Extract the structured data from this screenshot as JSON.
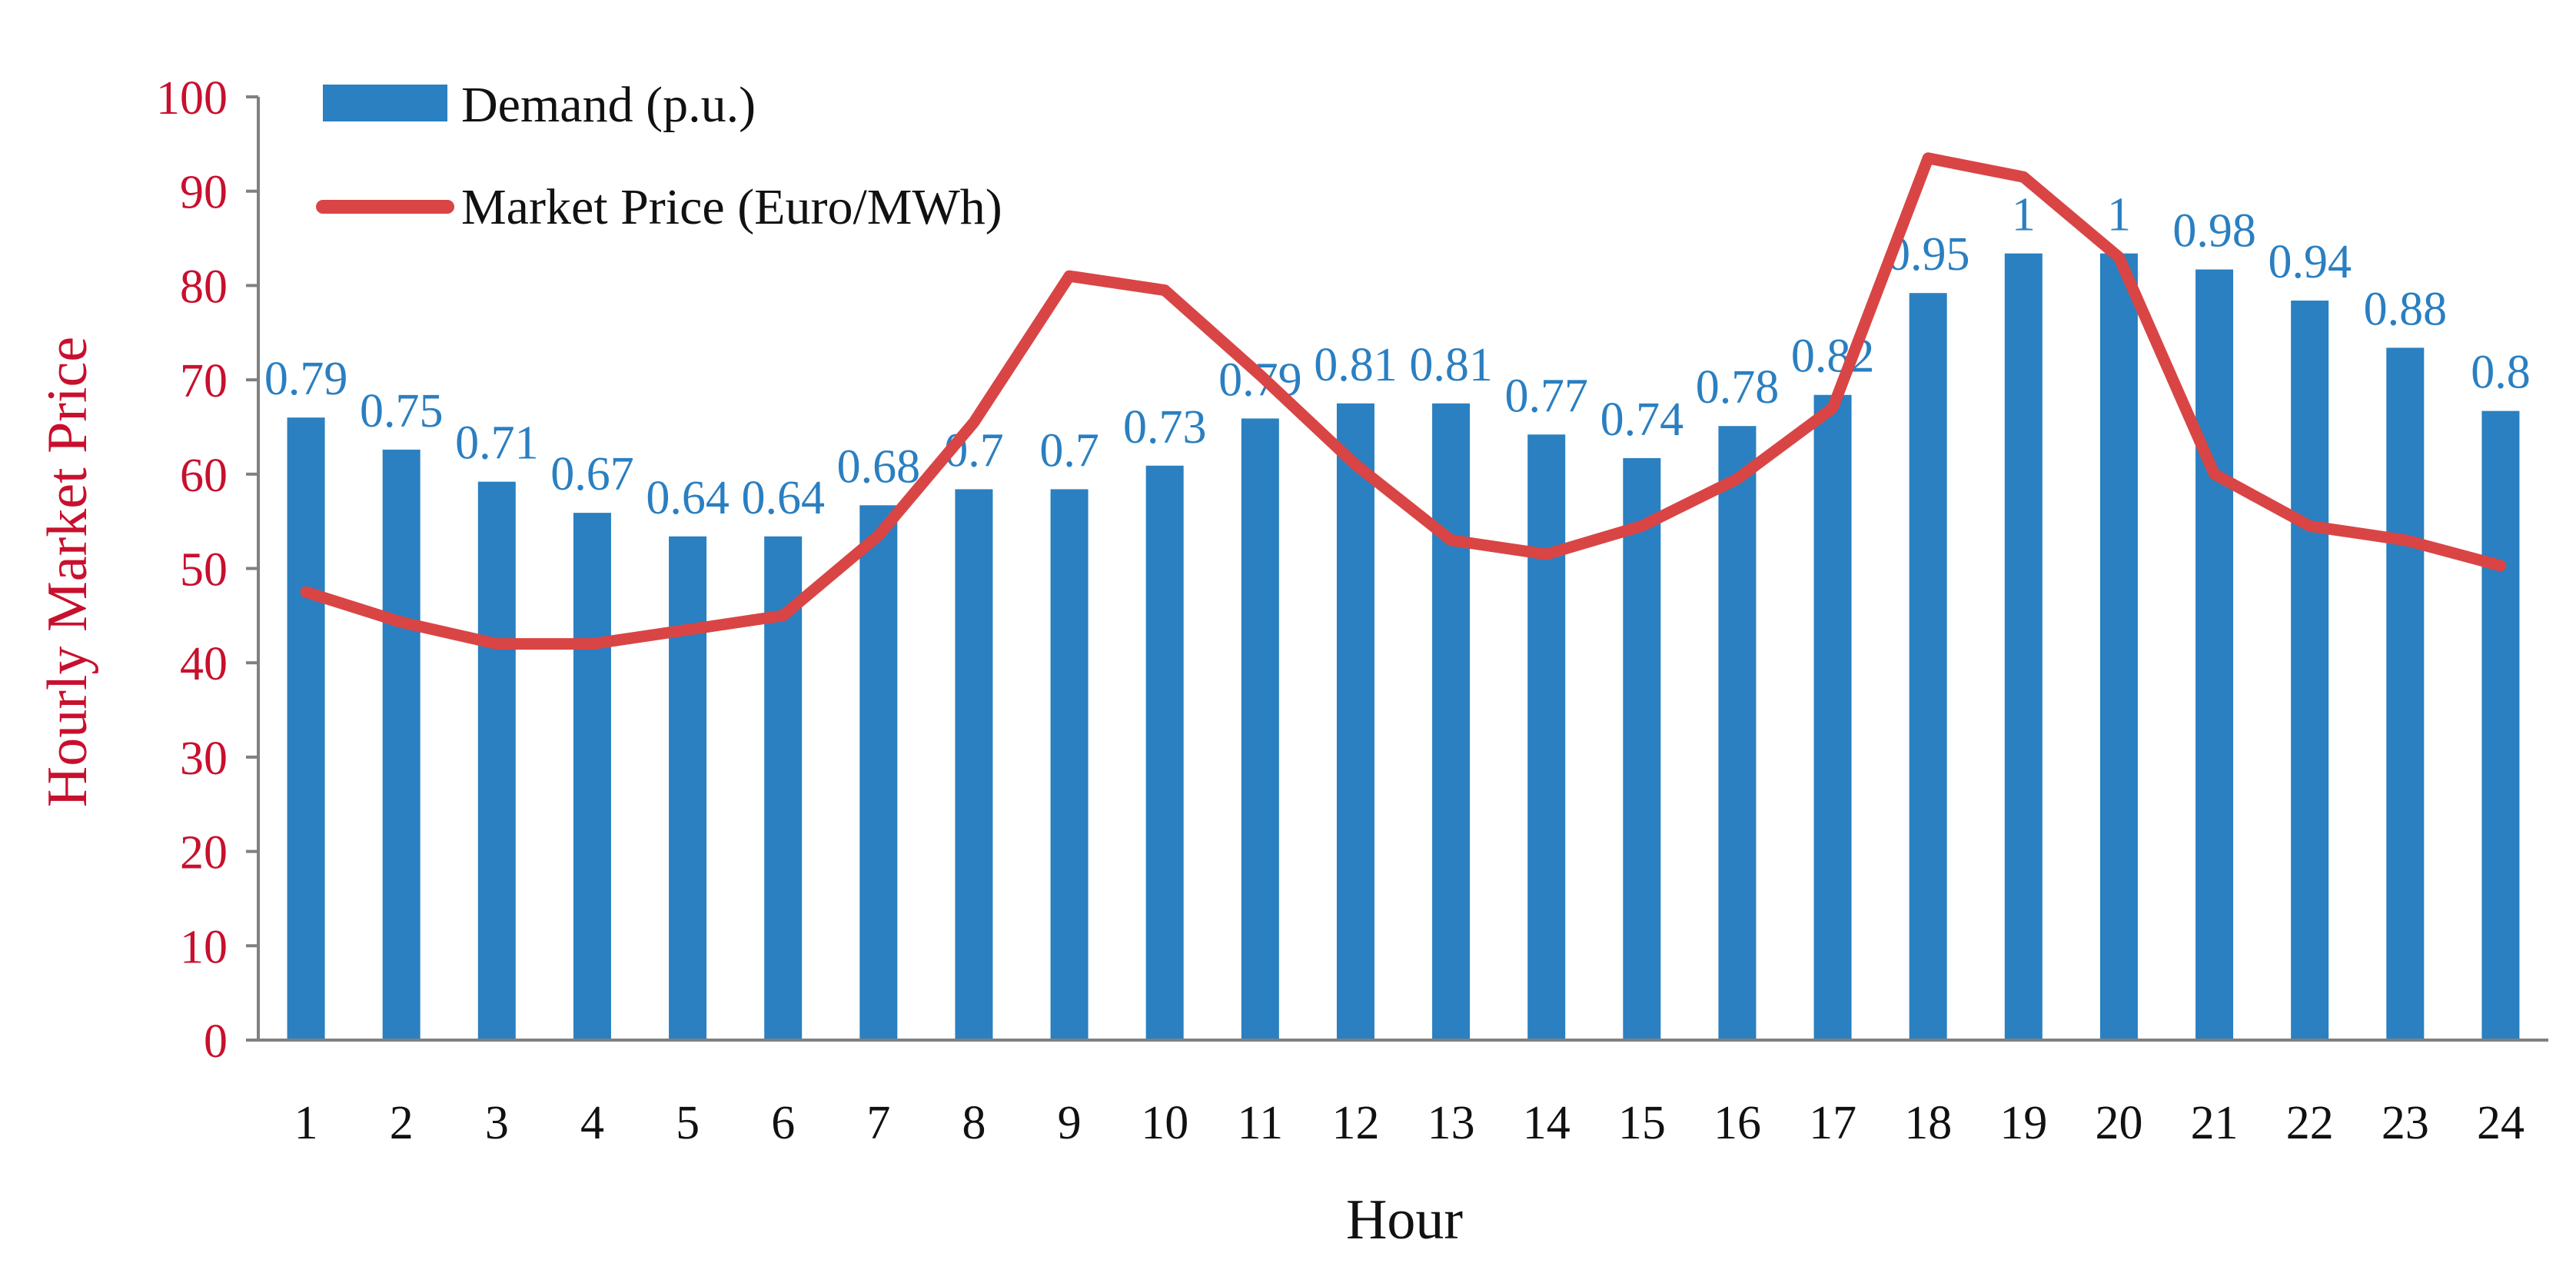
{
  "chart_data": {
    "type": "bar+line",
    "categories": [
      "1",
      "2",
      "3",
      "4",
      "5",
      "6",
      "7",
      "8",
      "9",
      "10",
      "11",
      "12",
      "13",
      "14",
      "15",
      "16",
      "17",
      "18",
      "19",
      "20",
      "21",
      "22",
      "23",
      "24"
    ],
    "series": [
      {
        "name": "Demand (p.u.)",
        "kind": "bar",
        "color": "#2a80c0",
        "values": [
          0.79,
          0.75,
          0.71,
          0.67,
          0.64,
          0.64,
          0.68,
          0.7,
          0.7,
          0.73,
          0.79,
          0.81,
          0.81,
          0.77,
          0.74,
          0.78,
          0.82,
          0.95,
          1,
          1,
          0.98,
          0.94,
          0.88,
          0.8
        ],
        "data_labels": [
          "0.79",
          "0.75",
          "0.71",
          "0.67",
          "0.64",
          "0.64",
          "0.68",
          "0.7",
          "0.7",
          "0.73",
          "0.79",
          "0.81",
          "0.81",
          "0.77",
          "0.74",
          "0.78",
          "0.82",
          "0.95",
          "1",
          "1",
          "0.98",
          "0.94",
          "0.88",
          "0.8"
        ],
        "bar_top_on_price_axis": [
          66,
          62.6,
          59.2,
          55.9,
          53.4,
          53.4,
          56.7,
          58.4,
          58.4,
          60.9,
          65.9,
          67.5,
          67.5,
          64.2,
          61.7,
          65.1,
          68.4,
          79.2,
          83.4,
          83.4,
          81.7,
          78.4,
          73.4,
          66.7
        ]
      },
      {
        "name": "Market Price (Euro/MWh)",
        "kind": "line",
        "color": "#d94545",
        "values": [
          47.5,
          44.3,
          42,
          42,
          43.5,
          45,
          53.5,
          65.5,
          81,
          79.5,
          70.5,
          61,
          53,
          51.5,
          54.5,
          59.5,
          67,
          93.5,
          91.5,
          83,
          60,
          54.5,
          53,
          50.3
        ]
      }
    ],
    "title": "",
    "xlabel": "Hour",
    "ylabel": "Hourly Market Price",
    "ylim": [
      0,
      100
    ],
    "yticks": [
      "0",
      "10",
      "20",
      "30",
      "40",
      "50",
      "60",
      "70",
      "80",
      "90",
      "100"
    ],
    "legend": {
      "position": "top-left",
      "entries": [
        "Demand (p.u.)",
        "Market Price (Euro/MWh)"
      ]
    },
    "colors": {
      "axis_text": "#c8102e",
      "bar": "#2a80c0",
      "label": "#2a7fc1",
      "line": "#d94545",
      "axis_line": "#808080",
      "text": "#111111"
    },
    "grid": false
  }
}
